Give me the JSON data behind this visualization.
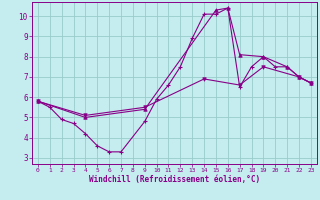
{
  "xlabel": "Windchill (Refroidissement éolien,°C)",
  "bg_color": "#c5ecee",
  "line_color": "#880088",
  "grid_color": "#99cccc",
  "xlim": [
    -0.5,
    23.5
  ],
  "ylim": [
    2.7,
    10.7
  ],
  "xticks": [
    0,
    1,
    2,
    3,
    4,
    5,
    6,
    7,
    8,
    9,
    10,
    11,
    12,
    13,
    14,
    15,
    16,
    17,
    18,
    19,
    20,
    21,
    22,
    23
  ],
  "yticks": [
    3,
    4,
    5,
    6,
    7,
    8,
    9,
    10
  ],
  "line1_x": [
    0,
    1,
    2,
    3,
    4,
    5,
    6,
    7,
    9,
    10,
    11,
    12,
    13,
    14,
    15,
    16,
    17,
    18,
    19,
    20,
    21,
    22,
    23
  ],
  "line1_y": [
    5.8,
    5.5,
    4.9,
    4.7,
    4.2,
    3.6,
    3.3,
    3.3,
    4.8,
    5.9,
    6.6,
    7.5,
    8.9,
    10.1,
    10.1,
    10.4,
    6.5,
    7.5,
    8.0,
    7.5,
    7.5,
    7.0,
    6.7
  ],
  "line2_x": [
    0,
    4,
    9,
    15,
    16,
    17,
    19,
    21,
    22,
    23
  ],
  "line2_y": [
    5.8,
    5.0,
    5.4,
    10.3,
    10.4,
    8.1,
    8.0,
    7.5,
    7.0,
    6.7
  ],
  "line3_x": [
    0,
    4,
    9,
    14,
    17,
    19,
    22,
    23
  ],
  "line3_y": [
    5.8,
    5.1,
    5.5,
    6.9,
    6.6,
    7.5,
    7.0,
    6.7
  ]
}
